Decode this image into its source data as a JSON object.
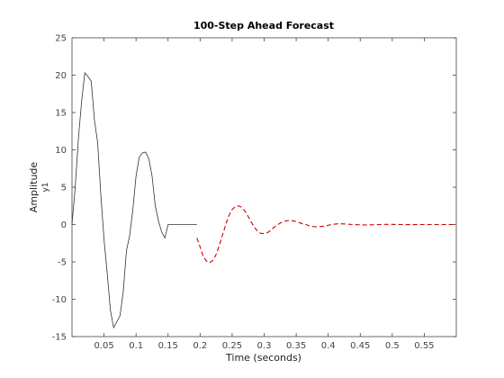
{
  "chart_data": {
    "type": "line",
    "title": "100-Step Ahead Forecast",
    "xlabel": "Time (seconds)",
    "ylabel": "Amplitude",
    "ylabel_sub": "y1",
    "xlim": [
      0,
      0.6
    ],
    "ylim": [
      -15,
      25
    ],
    "xticks": [
      0.05,
      0.1,
      0.15,
      0.2,
      0.25,
      0.3,
      0.35,
      0.4,
      0.45,
      0.5,
      0.55
    ],
    "xtick_labels": [
      "0.05",
      "0.1",
      "0.15",
      "0.2",
      "0.25",
      "0.3",
      "0.35",
      "0.4",
      "0.45",
      "0.5",
      "0.55"
    ],
    "yticks": [
      -15,
      -10,
      -5,
      0,
      5,
      10,
      15,
      20,
      25
    ],
    "ytick_labels": [
      "-15",
      "-10",
      "-5",
      "0",
      "5",
      "10",
      "15",
      "20",
      "25"
    ],
    "grid": false,
    "series": [
      {
        "color": "#333333",
        "style": "solid",
        "x": [
          0.0,
          0.005,
          0.01,
          0.015,
          0.02,
          0.025,
          0.03,
          0.035,
          0.04,
          0.045,
          0.05,
          0.055,
          0.06,
          0.065,
          0.07,
          0.075,
          0.08,
          0.085,
          0.09,
          0.095,
          0.1,
          0.105,
          0.11,
          0.115,
          0.12,
          0.125,
          0.13,
          0.135,
          0.14,
          0.145,
          0.15,
          0.155,
          0.16,
          0.165,
          0.17,
          0.175,
          0.18,
          0.185,
          0.19,
          0.195
        ],
        "y": [
          0.0,
          5.0,
          11.5,
          16.5,
          20.3,
          19.8,
          19.2,
          14.0,
          11.0,
          4.0,
          -2.0,
          -6.5,
          -11.5,
          -13.8,
          -13.0,
          -12.2,
          -9.0,
          -3.5,
          -1.5,
          2.0,
          6.5,
          9.0,
          9.6,
          9.7,
          8.8,
          6.5,
          2.5,
          0.5,
          -1.0,
          -1.8,
          0.0,
          0,
          0,
          0,
          0,
          0,
          0,
          0,
          0,
          0
        ]
      },
      {
        "color": "#cc0000",
        "style": "dashed",
        "x": [
          0.195,
          0.2,
          0.205,
          0.21,
          0.215,
          0.22,
          0.225,
          0.23,
          0.235,
          0.24,
          0.245,
          0.25,
          0.255,
          0.26,
          0.265,
          0.27,
          0.275,
          0.28,
          0.285,
          0.29,
          0.295,
          0.3,
          0.305,
          0.31,
          0.315,
          0.32,
          0.325,
          0.33,
          0.335,
          0.34,
          0.345,
          0.35,
          0.355,
          0.36,
          0.365,
          0.37,
          0.375,
          0.38,
          0.385,
          0.39,
          0.395,
          0.4,
          0.405,
          0.41,
          0.415,
          0.42,
          0.425,
          0.43,
          0.435,
          0.44,
          0.445,
          0.45,
          0.455,
          0.46,
          0.465,
          0.47,
          0.475,
          0.48,
          0.485,
          0.49,
          0.495,
          0.5,
          0.505,
          0.51,
          0.515,
          0.52,
          0.525,
          0.53,
          0.535,
          0.54,
          0.545,
          0.55,
          0.555,
          0.56,
          0.565,
          0.57,
          0.575,
          0.58,
          0.585,
          0.59,
          0.595
        ],
        "y": [
          -1.8,
          -3.0,
          -4.3,
          -4.9,
          -5.1,
          -4.8,
          -4.0,
          -2.8,
          -1.4,
          0.0,
          1.2,
          2.0,
          2.4,
          2.5,
          2.3,
          1.8,
          1.1,
          0.3,
          -0.4,
          -0.9,
          -1.2,
          -1.2,
          -1.1,
          -0.8,
          -0.4,
          -0.1,
          0.2,
          0.4,
          0.5,
          0.55,
          0.5,
          0.4,
          0.25,
          0.1,
          0.0,
          -0.15,
          -0.25,
          -0.3,
          -0.3,
          -0.25,
          -0.2,
          -0.1,
          0.0,
          0.05,
          0.1,
          0.1,
          0.08,
          0.05,
          0.02,
          0.0,
          -0.02,
          -0.04,
          -0.05,
          -0.05,
          -0.04,
          -0.03,
          -0.02,
          0.0,
          0.01,
          0.02,
          0.02,
          0.02,
          0.01,
          0.01,
          0.0,
          0.0,
          -0.01,
          -0.01,
          -0.01,
          0.0,
          0.0,
          0.0,
          0.0,
          0.0,
          0.0,
          0.0,
          0.0,
          0.0,
          0.0,
          0.0,
          0.0
        ]
      }
    ]
  }
}
